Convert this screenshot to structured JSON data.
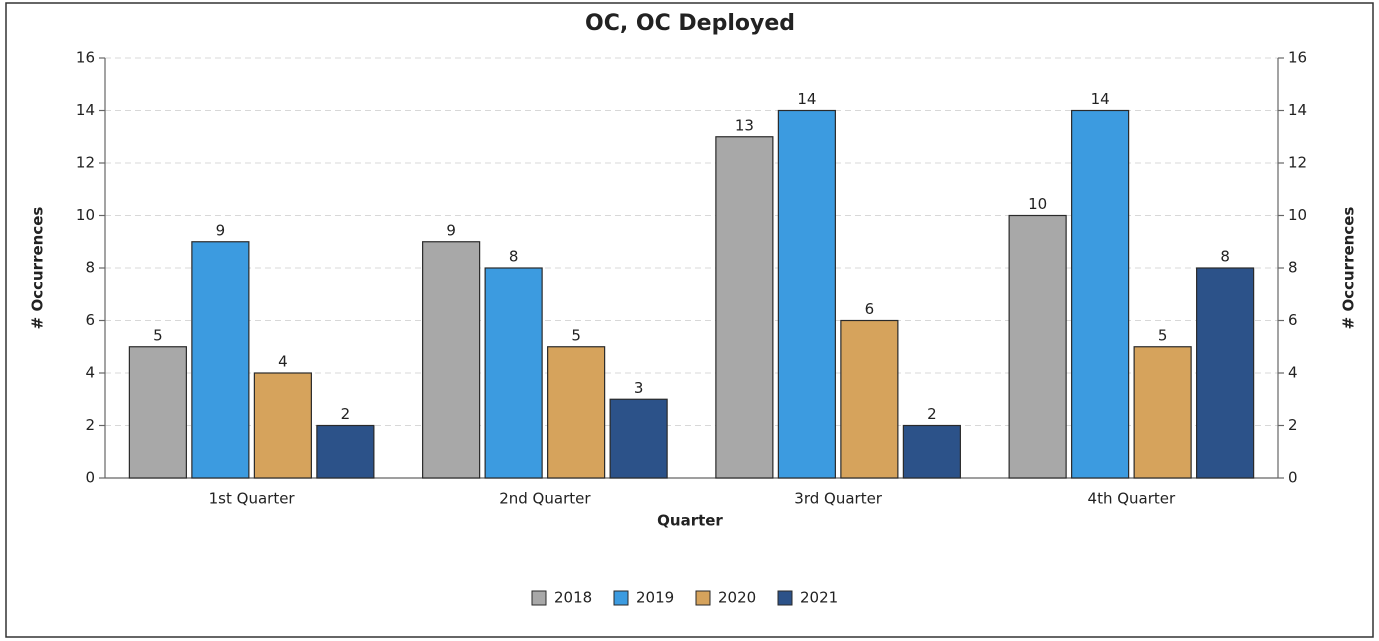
{
  "chart_data": {
    "type": "bar",
    "title": "OC, OC Deployed",
    "x_label": "Quarter",
    "y_label": "# Occurrences",
    "y2_label": "# Occurrences",
    "categories": [
      "1st Quarter",
      "2nd Quarter",
      "3rd Quarter",
      "4th Quarter"
    ],
    "series": [
      {
        "name": "2018",
        "color": "#a8a8a8",
        "values": [
          5,
          9,
          13,
          10
        ]
      },
      {
        "name": "2019",
        "color": "#3c9be0",
        "values": [
          9,
          8,
          14,
          14
        ]
      },
      {
        "name": "2020",
        "color": "#d6a35c",
        "values": [
          4,
          5,
          6,
          5
        ]
      },
      {
        "name": "2021",
        "color": "#2c5289",
        "values": [
          2,
          3,
          2,
          8
        ]
      }
    ],
    "ylim": [
      0,
      16
    ],
    "yticks": [
      0,
      2,
      4,
      6,
      8,
      10,
      12,
      14,
      16
    ],
    "y2lim": [
      0,
      16
    ],
    "y2ticks": [
      0,
      2,
      4,
      6,
      8,
      10,
      12,
      14,
      16
    ],
    "grid": true,
    "legend": "bottom"
  }
}
